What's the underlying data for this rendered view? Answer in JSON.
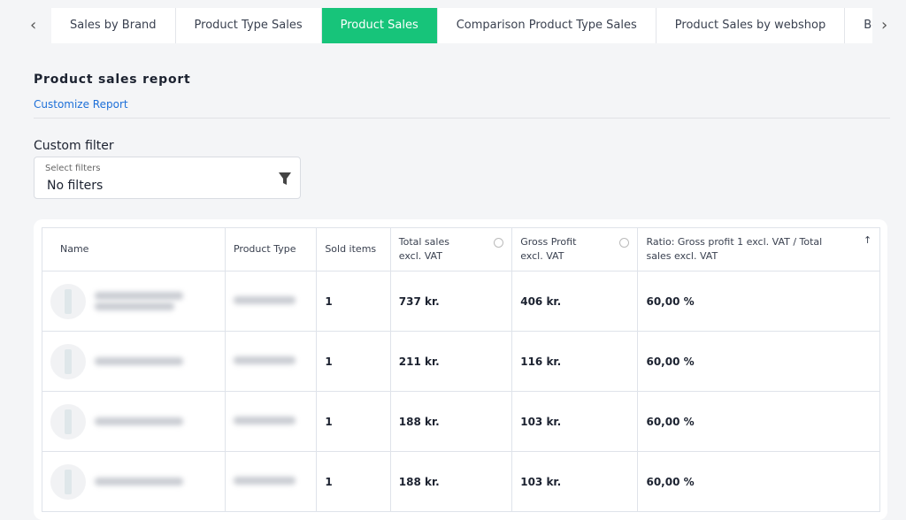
{
  "tabs": [
    "Sales by Brand",
    "Product Type Sales",
    "Product Sales",
    "Comparison Product Type Sales",
    "Product Sales by webshop",
    "Ber"
  ],
  "active_tab": 2,
  "report": {
    "title": "Product sales report",
    "customize_link": "Customize Report"
  },
  "filter": {
    "heading": "Custom filter",
    "field_label": "Select filters",
    "field_value": "No filters"
  },
  "table": {
    "headers": [
      "Name",
      "Product Type",
      "Sold items",
      "Total sales excl. VAT",
      "Gross Profit excl. VAT",
      "Ratio: Gross profit 1 excl. VAT / Total sales excl. VAT"
    ],
    "rows": [
      [
        "1",
        "737 kr.",
        "406 kr.",
        "60,00 %"
      ],
      [
        "1",
        "211 kr.",
        "116 kr.",
        "60,00 %"
      ],
      [
        "1",
        "188 kr.",
        "103 kr.",
        "60,00 %"
      ],
      [
        "1",
        "188 kr.",
        "103 kr.",
        "60,00 %"
      ]
    ]
  }
}
